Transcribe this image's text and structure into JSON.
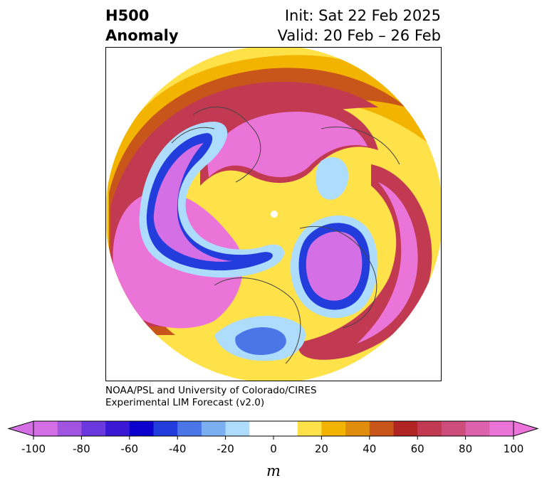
{
  "title": {
    "left_line1": "H500",
    "left_line2": "Anomaly",
    "right_line1": "Init: Sat 22 Feb 2025",
    "right_line2": "Valid: 20 Feb – 26 Feb"
  },
  "credit": {
    "line1": "NOAA/PSL and University of Colorado/CIRES",
    "line2": "Experimental LIM Forecast (v2.0)"
  },
  "colorbar": {
    "unit": "m",
    "ticks": [
      "-100",
      "-80",
      "-60",
      "-40",
      "-20",
      "0",
      "20",
      "40",
      "60",
      "80",
      "100"
    ],
    "tick_values": [
      -100,
      -80,
      -60,
      -40,
      -20,
      0,
      20,
      40,
      60,
      80,
      100
    ],
    "min": -100,
    "max": 100,
    "step": 10,
    "extend": "both",
    "colors": [
      "#d46fe6",
      "#a154e0",
      "#6a38dd",
      "#3a18d4",
      "#0c00cc",
      "#233cdc",
      "#4a76e8",
      "#7ab0f2",
      "#aedcfc",
      "#ffffff",
      "#ffffff",
      "#ffe14a",
      "#f2b400",
      "#e08c0c",
      "#c8561a",
      "#b02424",
      "#c23a52",
      "#cc4c7a",
      "#dc62ae",
      "#ea74d8"
    ],
    "extend_low_color": "#d46fe6",
    "extend_high_color": "#ea74d8"
  },
  "map": {
    "projection": "polar stereographic, North Pole",
    "field": "500 hPa geopotential height anomaly"
  }
}
